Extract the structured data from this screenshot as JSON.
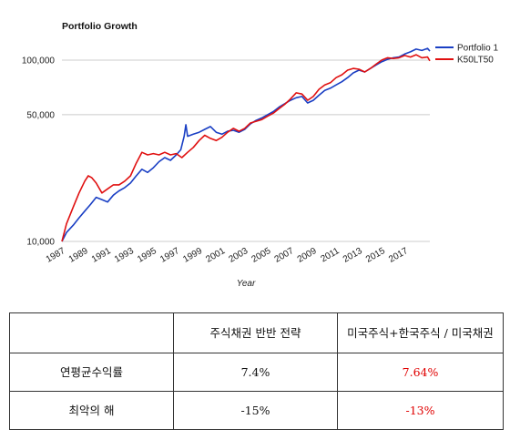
{
  "chart_data": {
    "type": "line",
    "title": "Portfolio Growth",
    "xlabel": "Year",
    "ylabel": "",
    "y_scale": "log",
    "ylim": [
      10000,
      135000
    ],
    "xlim": [
      1987,
      2019.2
    ],
    "grid": true,
    "legend_position": "top-right",
    "y_ticks": [
      {
        "value": 10000,
        "label": "10,000"
      },
      {
        "value": 50000,
        "label": "50,000"
      },
      {
        "value": 100000,
        "label": "100,000"
      }
    ],
    "x_ticks": [
      {
        "value": 1987,
        "label": "1987"
      },
      {
        "value": 1989,
        "label": "1989"
      },
      {
        "value": 1991,
        "label": "1991"
      },
      {
        "value": 1993,
        "label": "1993"
      },
      {
        "value": 1995,
        "label": "1995"
      },
      {
        "value": 1997,
        "label": "1997"
      },
      {
        "value": 1999,
        "label": "1999"
      },
      {
        "value": 2001,
        "label": "2001"
      },
      {
        "value": 2003,
        "label": "2003"
      },
      {
        "value": 2005,
        "label": "2005"
      },
      {
        "value": 2007,
        "label": "2007"
      },
      {
        "value": 2009,
        "label": "2009"
      },
      {
        "value": 2011,
        "label": "2011"
      },
      {
        "value": 2013,
        "label": "2013"
      },
      {
        "value": 2015,
        "label": "2015"
      },
      {
        "value": 2017,
        "label": "2017"
      }
    ],
    "series": [
      {
        "name": "Portfolio 1",
        "color": "#1a3fc4",
        "points": [
          [
            1987.0,
            10000
          ],
          [
            1987.4,
            11200
          ],
          [
            1988.0,
            12300
          ],
          [
            1988.5,
            13500
          ],
          [
            1989.0,
            14700
          ],
          [
            1989.5,
            16000
          ],
          [
            1990.0,
            17500
          ],
          [
            1990.5,
            17000
          ],
          [
            1991.0,
            16500
          ],
          [
            1991.5,
            18000
          ],
          [
            1992.0,
            19000
          ],
          [
            1992.5,
            19800
          ],
          [
            1993.0,
            21000
          ],
          [
            1993.5,
            23000
          ],
          [
            1994.0,
            25000
          ],
          [
            1994.5,
            24000
          ],
          [
            1995.0,
            25500
          ],
          [
            1995.5,
            27500
          ],
          [
            1996.0,
            29000
          ],
          [
            1996.5,
            28000
          ],
          [
            1997.0,
            30000
          ],
          [
            1997.4,
            32000
          ],
          [
            1997.7,
            38000
          ],
          [
            1997.85,
            44000
          ],
          [
            1998.0,
            38000
          ],
          [
            1998.5,
            39000
          ],
          [
            1999.0,
            40000
          ],
          [
            1999.5,
            41500
          ],
          [
            2000.0,
            43000
          ],
          [
            2000.5,
            40000
          ],
          [
            2001.0,
            39000
          ],
          [
            2001.5,
            40500
          ],
          [
            2002.0,
            41000
          ],
          [
            2002.5,
            40000
          ],
          [
            2003.0,
            41500
          ],
          [
            2003.5,
            44500
          ],
          [
            2004.0,
            46500
          ],
          [
            2004.5,
            48000
          ],
          [
            2005.0,
            50000
          ],
          [
            2005.5,
            52000
          ],
          [
            2006.0,
            55000
          ],
          [
            2006.5,
            57500
          ],
          [
            2007.0,
            60000
          ],
          [
            2007.5,
            62000
          ],
          [
            2008.0,
            63000
          ],
          [
            2008.5,
            58000
          ],
          [
            2009.0,
            60000
          ],
          [
            2009.5,
            64000
          ],
          [
            2010.0,
            68000
          ],
          [
            2010.5,
            70000
          ],
          [
            2011.0,
            73000
          ],
          [
            2011.5,
            76000
          ],
          [
            2012.0,
            80000
          ],
          [
            2012.5,
            85000
          ],
          [
            2013.0,
            88000
          ],
          [
            2013.5,
            86000
          ],
          [
            2014.0,
            90000
          ],
          [
            2014.5,
            94000
          ],
          [
            2015.0,
            98000
          ],
          [
            2015.5,
            101000
          ],
          [
            2016.0,
            103000
          ],
          [
            2016.5,
            104000
          ],
          [
            2017.0,
            108000
          ],
          [
            2017.5,
            111000
          ],
          [
            2018.0,
            115000
          ],
          [
            2018.5,
            113000
          ],
          [
            2019.0,
            116000
          ],
          [
            2019.2,
            112000
          ]
        ]
      },
      {
        "name": "K50LT50",
        "color": "#e01010",
        "points": [
          [
            1987.0,
            10000
          ],
          [
            1987.4,
            12500
          ],
          [
            1988.0,
            15500
          ],
          [
            1988.5,
            18500
          ],
          [
            1989.0,
            21500
          ],
          [
            1989.3,
            23000
          ],
          [
            1989.6,
            22500
          ],
          [
            1990.0,
            21000
          ],
          [
            1990.5,
            18500
          ],
          [
            1991.0,
            19500
          ],
          [
            1991.5,
            20500
          ],
          [
            1992.0,
            20500
          ],
          [
            1992.5,
            21500
          ],
          [
            1993.0,
            23000
          ],
          [
            1993.5,
            27000
          ],
          [
            1994.0,
            31000
          ],
          [
            1994.5,
            30000
          ],
          [
            1995.0,
            30500
          ],
          [
            1995.5,
            30000
          ],
          [
            1996.0,
            31000
          ],
          [
            1996.5,
            30000
          ],
          [
            1997.0,
            30500
          ],
          [
            1997.5,
            29000
          ],
          [
            1998.0,
            31000
          ],
          [
            1998.5,
            33000
          ],
          [
            1999.0,
            36000
          ],
          [
            1999.5,
            38500
          ],
          [
            2000.0,
            37000
          ],
          [
            2000.5,
            36000
          ],
          [
            2001.0,
            37500
          ],
          [
            2001.5,
            40000
          ],
          [
            2002.0,
            42000
          ],
          [
            2002.5,
            40500
          ],
          [
            2003.0,
            42000
          ],
          [
            2003.5,
            45000
          ],
          [
            2004.0,
            46000
          ],
          [
            2004.5,
            47000
          ],
          [
            2005.0,
            49000
          ],
          [
            2005.5,
            51000
          ],
          [
            2006.0,
            54000
          ],
          [
            2006.5,
            57000
          ],
          [
            2007.0,
            61000
          ],
          [
            2007.5,
            66000
          ],
          [
            2008.0,
            65000
          ],
          [
            2008.5,
            60000
          ],
          [
            2009.0,
            63000
          ],
          [
            2009.5,
            69000
          ],
          [
            2010.0,
            73000
          ],
          [
            2010.5,
            75000
          ],
          [
            2011.0,
            80000
          ],
          [
            2011.5,
            83000
          ],
          [
            2012.0,
            88000
          ],
          [
            2012.5,
            90000
          ],
          [
            2013.0,
            89000
          ],
          [
            2013.5,
            86000
          ],
          [
            2014.0,
            90000
          ],
          [
            2014.5,
            95000
          ],
          [
            2015.0,
            100000
          ],
          [
            2015.5,
            103000
          ],
          [
            2016.0,
            102000
          ],
          [
            2016.5,
            103000
          ],
          [
            2017.0,
            106000
          ],
          [
            2017.5,
            104000
          ],
          [
            2018.0,
            107000
          ],
          [
            2018.5,
            103000
          ],
          [
            2019.0,
            104000
          ],
          [
            2019.2,
            99000
          ]
        ]
      }
    ]
  },
  "summary_table": {
    "header": [
      "",
      "주식채권 반반 전략",
      "미국주식+한국주식 / 미국채권"
    ],
    "rows": [
      {
        "label": "연평균수익률",
        "values": [
          "7.4%",
          "7.64%"
        ]
      },
      {
        "label": "최악의 해",
        "values": [
          "-15%",
          "-13%"
        ]
      }
    ],
    "highlight_color": "#e00000"
  }
}
